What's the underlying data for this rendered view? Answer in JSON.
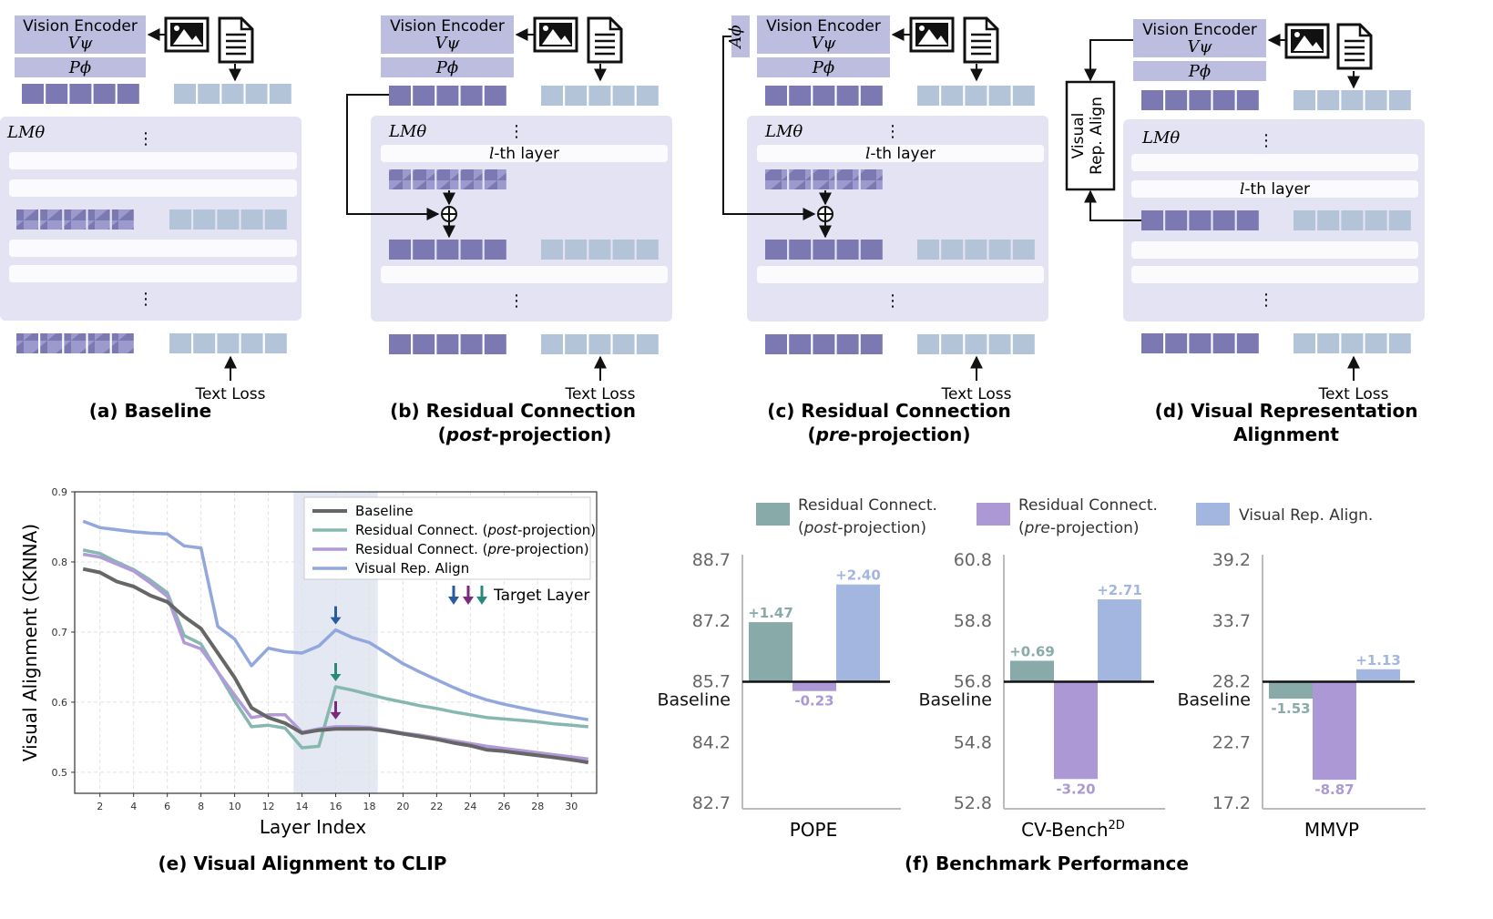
{
  "colors": {
    "dark_token": "#7b78b2",
    "light_token": "#b3c3d8",
    "panel": "#e3e3f3",
    "encoder_box": "#bdbde0",
    "baseline_line": "#666666",
    "post_line": "#86b8b0",
    "pre_line": "#b19ad8",
    "align_line": "#92a8dc",
    "bar_post": "#88aaa8",
    "bar_pre": "#ad98d6",
    "bar_align": "#a3b6e0",
    "highlight": "#e3e8f3",
    "arrow_blue": "#2a5aa0",
    "arrow_purple": "#7a2a7a",
    "arrow_teal": "#2a8a7a"
  },
  "diagrams": [
    {
      "id": "a",
      "caption_line1": "(a) Baseline",
      "caption_line2": ""
    },
    {
      "id": "b",
      "caption_line1": "(b) Residual Connection",
      "caption_line2_pre": "(",
      "caption_line2_em": "post",
      "caption_line2_post": "-projection)"
    },
    {
      "id": "c",
      "caption_line1": "(c) Residual Connection",
      "caption_line2_pre": "(",
      "caption_line2_em": "pre",
      "caption_line2_post": "-projection)"
    },
    {
      "id": "d",
      "caption_line1": "(d) Visual Representation",
      "caption_line2": "Alignment"
    }
  ],
  "labels": {
    "vision_encoder": "Vision Encoder",
    "v_psi": "Vψ",
    "p_phi": "Pϕ",
    "a_phi": "Aϕ",
    "lm_theta": "LMθ",
    "lth_layer_var": "l",
    "lth_layer_rest": "-th layer",
    "text_loss": "Text Loss",
    "dots": "⋮",
    "oplus": "⊕",
    "visual_rep_align_1": "Visual",
    "visual_rep_align_2": "Rep. Align",
    "image_icon": "image-icon",
    "document_icon": "document-icon"
  },
  "line_chart": {
    "caption": "(e) Visual Alignment to CLIP",
    "xlabel": "Layer Index",
    "ylabel": "Visual Alignment (CKNNA)",
    "target_layer_label": "Target Layer",
    "legend": {
      "baseline": "Baseline",
      "post_pre": "Residual Connect. (",
      "post_em": "post",
      "post_post": "-projection)",
      "pre_pre": "Residual Connect. (",
      "pre_em": "pre",
      "pre_post": "-projection)",
      "align": "Visual Rep. Align"
    }
  },
  "chart_data": [
    {
      "type": "line",
      "xlabel": "Layer Index",
      "ylabel": "Visual Alignment (CKNNA)",
      "xlim": [
        0.5,
        31.5
      ],
      "ylim": [
        0.47,
        0.9
      ],
      "xticks": [
        2,
        4,
        6,
        8,
        10,
        12,
        14,
        16,
        18,
        20,
        22,
        24,
        26,
        28,
        30
      ],
      "yticks": [
        0.5,
        0.6,
        0.7,
        0.8,
        0.9
      ],
      "highlight_range": [
        13.5,
        18.5
      ],
      "target_layer": 16,
      "legend_position": "top-right",
      "grid": true,
      "x": [
        1,
        2,
        3,
        4,
        5,
        6,
        7,
        8,
        9,
        10,
        11,
        12,
        13,
        14,
        15,
        16,
        17,
        18,
        19,
        20,
        21,
        22,
        23,
        24,
        25,
        26,
        27,
        28,
        29,
        30,
        31
      ],
      "series": [
        {
          "name": "Baseline",
          "values": [
            0.79,
            0.785,
            0.772,
            0.765,
            0.752,
            0.743,
            0.722,
            0.705,
            0.67,
            0.635,
            0.592,
            0.578,
            0.57,
            0.556,
            0.56,
            0.562,
            0.562,
            0.562,
            0.559,
            0.555,
            0.551,
            0.547,
            0.542,
            0.538,
            0.532,
            0.53,
            0.527,
            0.524,
            0.521,
            0.518,
            0.514
          ]
        },
        {
          "name": "Residual Connect. (post-projection)",
          "values": [
            0.817,
            0.812,
            0.8,
            0.789,
            0.774,
            0.756,
            0.695,
            0.683,
            0.643,
            0.602,
            0.565,
            0.567,
            0.563,
            0.535,
            0.537,
            0.622,
            0.617,
            0.611,
            0.605,
            0.6,
            0.595,
            0.591,
            0.586,
            0.582,
            0.578,
            0.576,
            0.574,
            0.572,
            0.569,
            0.567,
            0.565
          ]
        },
        {
          "name": "Residual Connect. (pre-projection)",
          "values": [
            0.811,
            0.807,
            0.797,
            0.787,
            0.77,
            0.751,
            0.685,
            0.676,
            0.643,
            0.61,
            0.578,
            0.582,
            0.582,
            0.557,
            0.562,
            0.565,
            0.565,
            0.564,
            0.56,
            0.556,
            0.553,
            0.549,
            0.545,
            0.541,
            0.537,
            0.534,
            0.531,
            0.528,
            0.525,
            0.522,
            0.519
          ]
        },
        {
          "name": "Visual Rep. Align",
          "values": [
            0.858,
            0.849,
            0.846,
            0.843,
            0.841,
            0.84,
            0.823,
            0.82,
            0.708,
            0.69,
            0.652,
            0.677,
            0.672,
            0.67,
            0.68,
            0.703,
            0.692,
            0.685,
            0.67,
            0.655,
            0.643,
            0.632,
            0.621,
            0.611,
            0.603,
            0.597,
            0.592,
            0.587,
            0.583,
            0.579,
            0.575
          ]
        }
      ]
    },
    {
      "type": "bar",
      "title": "POPE",
      "baseline_label": "Baseline",
      "baseline": 85.7,
      "yticks": [
        "88.7",
        "87.2",
        "85.7",
        "84.2",
        "82.7"
      ],
      "ylim": [
        82.7,
        88.7
      ],
      "categories": [
        "Residual Connect. (post-projection)",
        "Residual Connect. (pre-projection)",
        "Visual Rep. Align."
      ],
      "values": [
        1.47,
        -0.23,
        2.4
      ],
      "value_labels": [
        "+1.47",
        "-0.23",
        "+2.40"
      ]
    },
    {
      "type": "bar",
      "title": "CV-Bench",
      "title_sup": "2D",
      "baseline_label": "Baseline",
      "baseline": 56.8,
      "yticks": [
        "60.8",
        "58.8",
        "56.8",
        "54.8",
        "52.8"
      ],
      "ylim": [
        52.8,
        60.8
      ],
      "categories": [
        "Residual Connect. (post-projection)",
        "Residual Connect. (pre-projection)",
        "Visual Rep. Align."
      ],
      "values": [
        0.69,
        -3.2,
        2.71
      ],
      "value_labels": [
        "+0.69",
        "-3.20",
        "+2.71"
      ]
    },
    {
      "type": "bar",
      "title": "MMVP",
      "baseline_label": "Baseline",
      "baseline": 28.2,
      "yticks": [
        "39.2",
        "33.7",
        "28.2",
        "22.7",
        "17.2"
      ],
      "ylim": [
        17.2,
        39.2
      ],
      "categories": [
        "Residual Connect. (post-projection)",
        "Residual Connect. (pre-projection)",
        "Visual Rep. Align."
      ],
      "values": [
        -1.53,
        -8.87,
        1.13
      ],
      "value_labels": [
        "-1.53",
        "-8.87",
        "+1.13"
      ]
    }
  ],
  "bar_legend": {
    "post_line1": "Residual Connect.",
    "post_line2_pre": "(",
    "post_line2_em": "post",
    "post_line2_post": "-projection)",
    "pre_line1": "Residual Connect.",
    "pre_line2_pre": "(",
    "pre_line2_em": "pre",
    "pre_line2_post": "-projection)",
    "align": "Visual Rep. Align."
  },
  "bar_caption": "(f) Benchmark Performance"
}
